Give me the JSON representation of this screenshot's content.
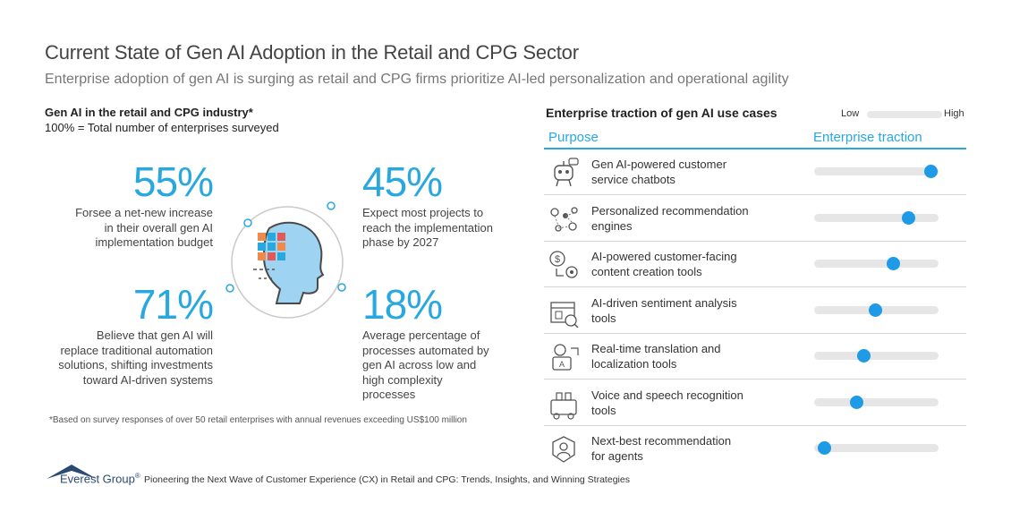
{
  "header": {
    "title": "Current State of Gen AI Adoption in the Retail and CPG Sector",
    "subtitle": "Enterprise adoption of gen AI is surging as retail and CPG firms prioritize AI-led personalization and operational agility"
  },
  "left": {
    "heading": "Gen AI in the retail and CPG industry*",
    "subheading": "100% = Total number of enterprises surveyed",
    "stats": [
      {
        "value": "55%",
        "lines": [
          "Forsee a net-new increase",
          "in their overall gen AI",
          "implementation budget"
        ]
      },
      {
        "value": "45%",
        "lines": [
          "Expect most projects to",
          "reach the implementation",
          "phase by 2027"
        ]
      },
      {
        "value": "71%",
        "lines": [
          "Believe that gen AI will",
          "replace traditional automation",
          "solutions, shifting investments",
          "toward AI-driven systems"
        ]
      },
      {
        "value": "18%",
        "lines": [
          "Average percentage of",
          "processes automated by",
          "gen AI across low and",
          "high complexity",
          "processes"
        ]
      }
    ],
    "footnote": "*Based on survey responses of over 50 retail enterprises with annual revenues exceeding US$100 million"
  },
  "right": {
    "heading": "Enterprise traction of gen AI use cases",
    "legend": {
      "low": "Low",
      "high": "High"
    },
    "columns": {
      "purpose": "Purpose",
      "traction": "Enterprise traction"
    },
    "rows": [
      {
        "icon": "robot-chatbot-icon",
        "lines": [
          "Gen AI-powered customer",
          "service chatbots"
        ],
        "traction": 0.94
      },
      {
        "icon": "recommendation-network-icon",
        "lines": [
          "Personalized recommendation",
          "engines"
        ],
        "traction": 0.76
      },
      {
        "icon": "content-creation-icon",
        "lines": [
          "AI-powered customer-facing",
          "content creation tools"
        ],
        "traction": 0.64
      },
      {
        "icon": "sentiment-analysis-icon",
        "lines": [
          "AI-driven sentiment analysis",
          "tools"
        ],
        "traction": 0.49
      },
      {
        "icon": "translation-icon",
        "lines": [
          "Real-time translation and",
          "localization tools"
        ],
        "traction": 0.4
      },
      {
        "icon": "voice-recognition-icon",
        "lines": [
          "Voice and speech recognition",
          "tools"
        ],
        "traction": 0.34
      },
      {
        "icon": "agent-recommendation-icon",
        "lines": [
          "Next-best recommendation",
          "for agents"
        ],
        "traction": 0.08
      }
    ],
    "colors": {
      "accent": "#29a8e0",
      "dot": "#1e9ae6",
      "track": "#e6e6e6"
    }
  },
  "footer": {
    "brand": "Everest Group",
    "registered": "®",
    "note": "Pioneering the Next Wave of Customer Experience (CX) in Retail and CPG: Trends, Insights, and Winning Strategies"
  }
}
